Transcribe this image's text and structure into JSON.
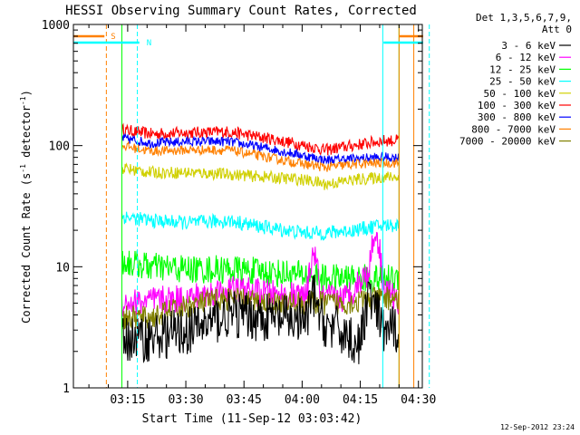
{
  "chart_data": {
    "type": "line",
    "title": "HESSI Observing Summary Count Rates, Corrected",
    "xlabel": "Start Time (11-Sep-12 03:03:42)",
    "ylabel_main": "Corrected Count Rate (s",
    "ylabel_sup1": "-1",
    "ylabel_mid": " detector",
    "ylabel_sup2": "-1",
    "ylabel_end": ")",
    "yscale": "log",
    "ylim": [
      1,
      1000
    ],
    "xlim_minutes": [
      0,
      90
    ],
    "x_tick_labels": [
      "03:15",
      "03:30",
      "03:45",
      "04:00",
      "04:15",
      "04:30"
    ],
    "x_tick_minutes": [
      14,
      29,
      44,
      59,
      74,
      89
    ],
    "y_tick_labels": [
      "1",
      "10",
      "100",
      "1000"
    ],
    "y_tick_values": [
      1,
      10,
      100,
      1000
    ],
    "legend_header": [
      "Det 1,3,5,6,7,9,",
      "Att 0"
    ],
    "legend": [
      {
        "label": "3 - 6 keV",
        "color": "#000000"
      },
      {
        "label": "6 - 12 keV",
        "color": "#ff00ff"
      },
      {
        "label": "12 - 25 keV",
        "color": "#00ff00"
      },
      {
        "label": "25 - 50 keV",
        "color": "#00ffff"
      },
      {
        "label": "50 - 100 keV",
        "color": "#d0d000"
      },
      {
        "label": "100 - 300 keV",
        "color": "#ff0000"
      },
      {
        "label": "300 - 800 keV",
        "color": "#0000ff"
      },
      {
        "label": "800 - 7000 keV",
        "color": "#ff8000"
      },
      {
        "label": "7000 - 20000 keV",
        "color": "#808000"
      }
    ],
    "flags": [
      {
        "label": "S",
        "color": "#ff8000",
        "start_min": 8,
        "end_min": 84
      },
      {
        "label": "N",
        "color": "#00ffff",
        "start_min": 17,
        "end_min": 80
      }
    ],
    "vertical_lines": [
      {
        "minute": 0,
        "color": "#00ffff",
        "style": "solid"
      },
      {
        "minute": 8.5,
        "color": "#ff8000",
        "style": "dashed"
      },
      {
        "minute": 16.5,
        "color": "#00ffff",
        "style": "dashed"
      },
      {
        "minute": 12.5,
        "color": "#00ff00",
        "style": "solid"
      },
      {
        "minute": 79.8,
        "color": "#00ffff",
        "style": "solid"
      },
      {
        "minute": 84,
        "color": "#00ff00",
        "style": "solid"
      },
      {
        "minute": 84,
        "color": "#ff8000",
        "style": "solid"
      },
      {
        "minute": 87.8,
        "color": "#ff8000",
        "style": "solid"
      },
      {
        "minute": 91.8,
        "color": "#00ffff",
        "style": "dashed"
      }
    ],
    "data_range_minutes": [
      12.5,
      84
    ],
    "series": [
      {
        "name": "100 - 300 keV",
        "color": "#ff0000",
        "x": [
          12.5,
          20,
          30,
          40,
          50,
          60,
          65,
          72,
          80,
          84
        ],
        "y": [
          135,
          125,
          128,
          130,
          115,
          100,
          92,
          100,
          110,
          110
        ],
        "noise": 0.05
      },
      {
        "name": "300 - 800 keV",
        "color": "#0000ff",
        "x": [
          12.5,
          20,
          30,
          40,
          50,
          60,
          65,
          72,
          80,
          84
        ],
        "y": [
          115,
          105,
          108,
          108,
          95,
          82,
          76,
          78,
          80,
          80
        ],
        "noise": 0.04
      },
      {
        "name": "800 - 7000 keV",
        "color": "#ff8000",
        "x": [
          12.5,
          20,
          30,
          40,
          50,
          60,
          65,
          72,
          80,
          84
        ],
        "y": [
          100,
          90,
          92,
          92,
          80,
          70,
          66,
          70,
          72,
          72
        ],
        "noise": 0.04
      },
      {
        "name": "50 - 100 keV",
        "color": "#d0d000",
        "x": [
          12.5,
          20,
          30,
          40,
          50,
          60,
          65,
          72,
          80,
          84
        ],
        "y": [
          65,
          60,
          60,
          58,
          55,
          52,
          48,
          52,
          55,
          55
        ],
        "noise": 0.05
      },
      {
        "name": "25 - 50 keV",
        "color": "#00ffff",
        "x": [
          12.5,
          20,
          30,
          40,
          50,
          60,
          65,
          72,
          80,
          84
        ],
        "y": [
          26,
          24,
          23,
          24,
          21,
          19,
          19,
          20,
          22,
          22
        ],
        "noise": 0.06
      },
      {
        "name": "12 - 25 keV",
        "color": "#00ff00",
        "x": [
          12.5,
          20,
          30,
          40,
          50,
          60,
          65,
          72,
          80,
          84
        ],
        "y": [
          11,
          10,
          9.5,
          9.5,
          9,
          8.5,
          8,
          8,
          8,
          8
        ],
        "noise": 0.12
      },
      {
        "name": "6 - 12 keV",
        "color": "#ff00ff",
        "x": [
          12.5,
          20,
          30,
          40,
          50,
          60,
          61,
          62,
          63,
          64,
          70,
          76,
          77,
          78,
          79,
          80,
          84
        ],
        "y": [
          5,
          5.2,
          5.5,
          6.5,
          6,
          5.5,
          9,
          14,
          9,
          5.5,
          5.5,
          9,
          14,
          20,
          14,
          7,
          5
        ],
        "noise": 0.12
      },
      {
        "name": "7000 - 20000 keV",
        "color": "#808000",
        "x": [
          12.5,
          20,
          30,
          40,
          50,
          60,
          70,
          80,
          84
        ],
        "y": [
          3.8,
          3.8,
          4.8,
          5.5,
          5,
          5,
          5,
          5.5,
          5.5
        ],
        "noise": 0.1
      },
      {
        "name": "3 - 6 keV",
        "color": "#000000",
        "x": [
          12.5,
          20,
          30,
          40,
          50,
          60,
          62,
          64,
          70,
          74,
          76,
          80,
          84
        ],
        "y": [
          2.5,
          2.6,
          3.0,
          4.0,
          3.8,
          3.5,
          6.0,
          3.5,
          2.8,
          2.2,
          6.0,
          3.0,
          3.0
        ],
        "noise": 0.2
      }
    ]
  },
  "footer_timestamp": "12-Sep-2012 23:24"
}
